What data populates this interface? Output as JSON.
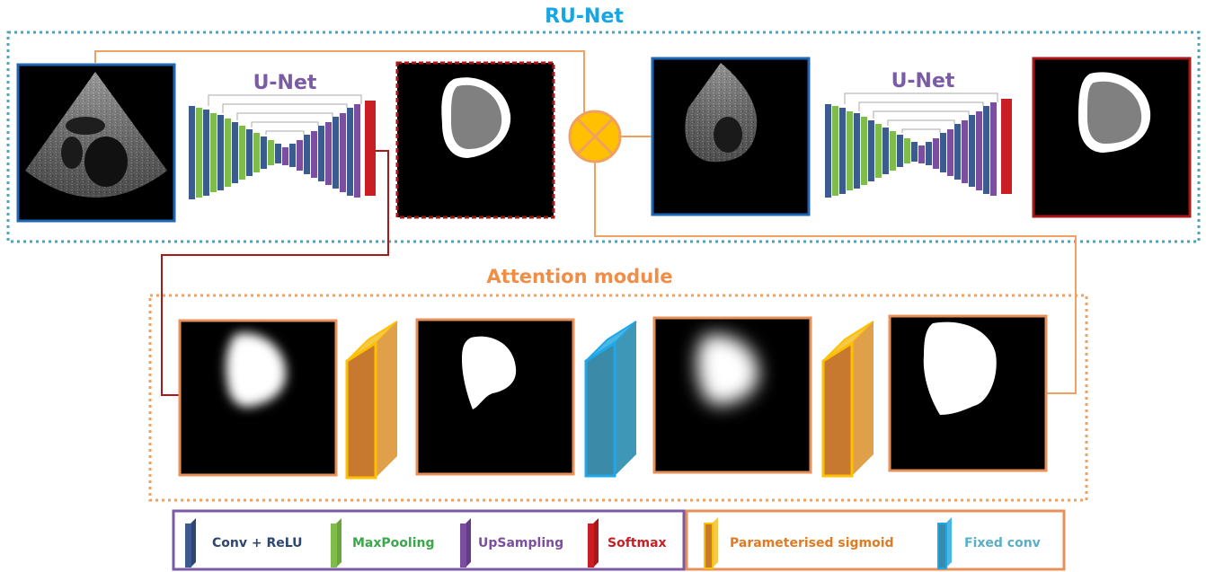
{
  "titles": {
    "runet": "RU-Net",
    "unet_1": "U-Net",
    "unet_2": "U-Net",
    "attention": "Attention module"
  },
  "legend": {
    "conv_relu": "Conv + ReLU",
    "maxpooling": "MaxPooling",
    "upsampling": "UpSampling",
    "softmax": "Softmax",
    "param_sigmoid": "Parameterised sigmoid",
    "fixed_conv": "Fixed conv"
  },
  "colors": {
    "runet_title": "#16a6e2",
    "unet_title": "#7b5ba6",
    "attention_title": "#f08e48",
    "conv_relu": "#3c5b8f",
    "maxpooling": "#7fbc4a",
    "upsampling": "#7c4ea0",
    "softmax": "#c81e24",
    "param_sigmoid": "#e07b24",
    "fixed_conv": "#5aaec6",
    "blue_frame": "#1f66b5",
    "red_frame": "#a81818",
    "orange_frame": "#e8905a",
    "teal_dotted": "#4fa3b8",
    "multiply_node": "#ffc000"
  }
}
